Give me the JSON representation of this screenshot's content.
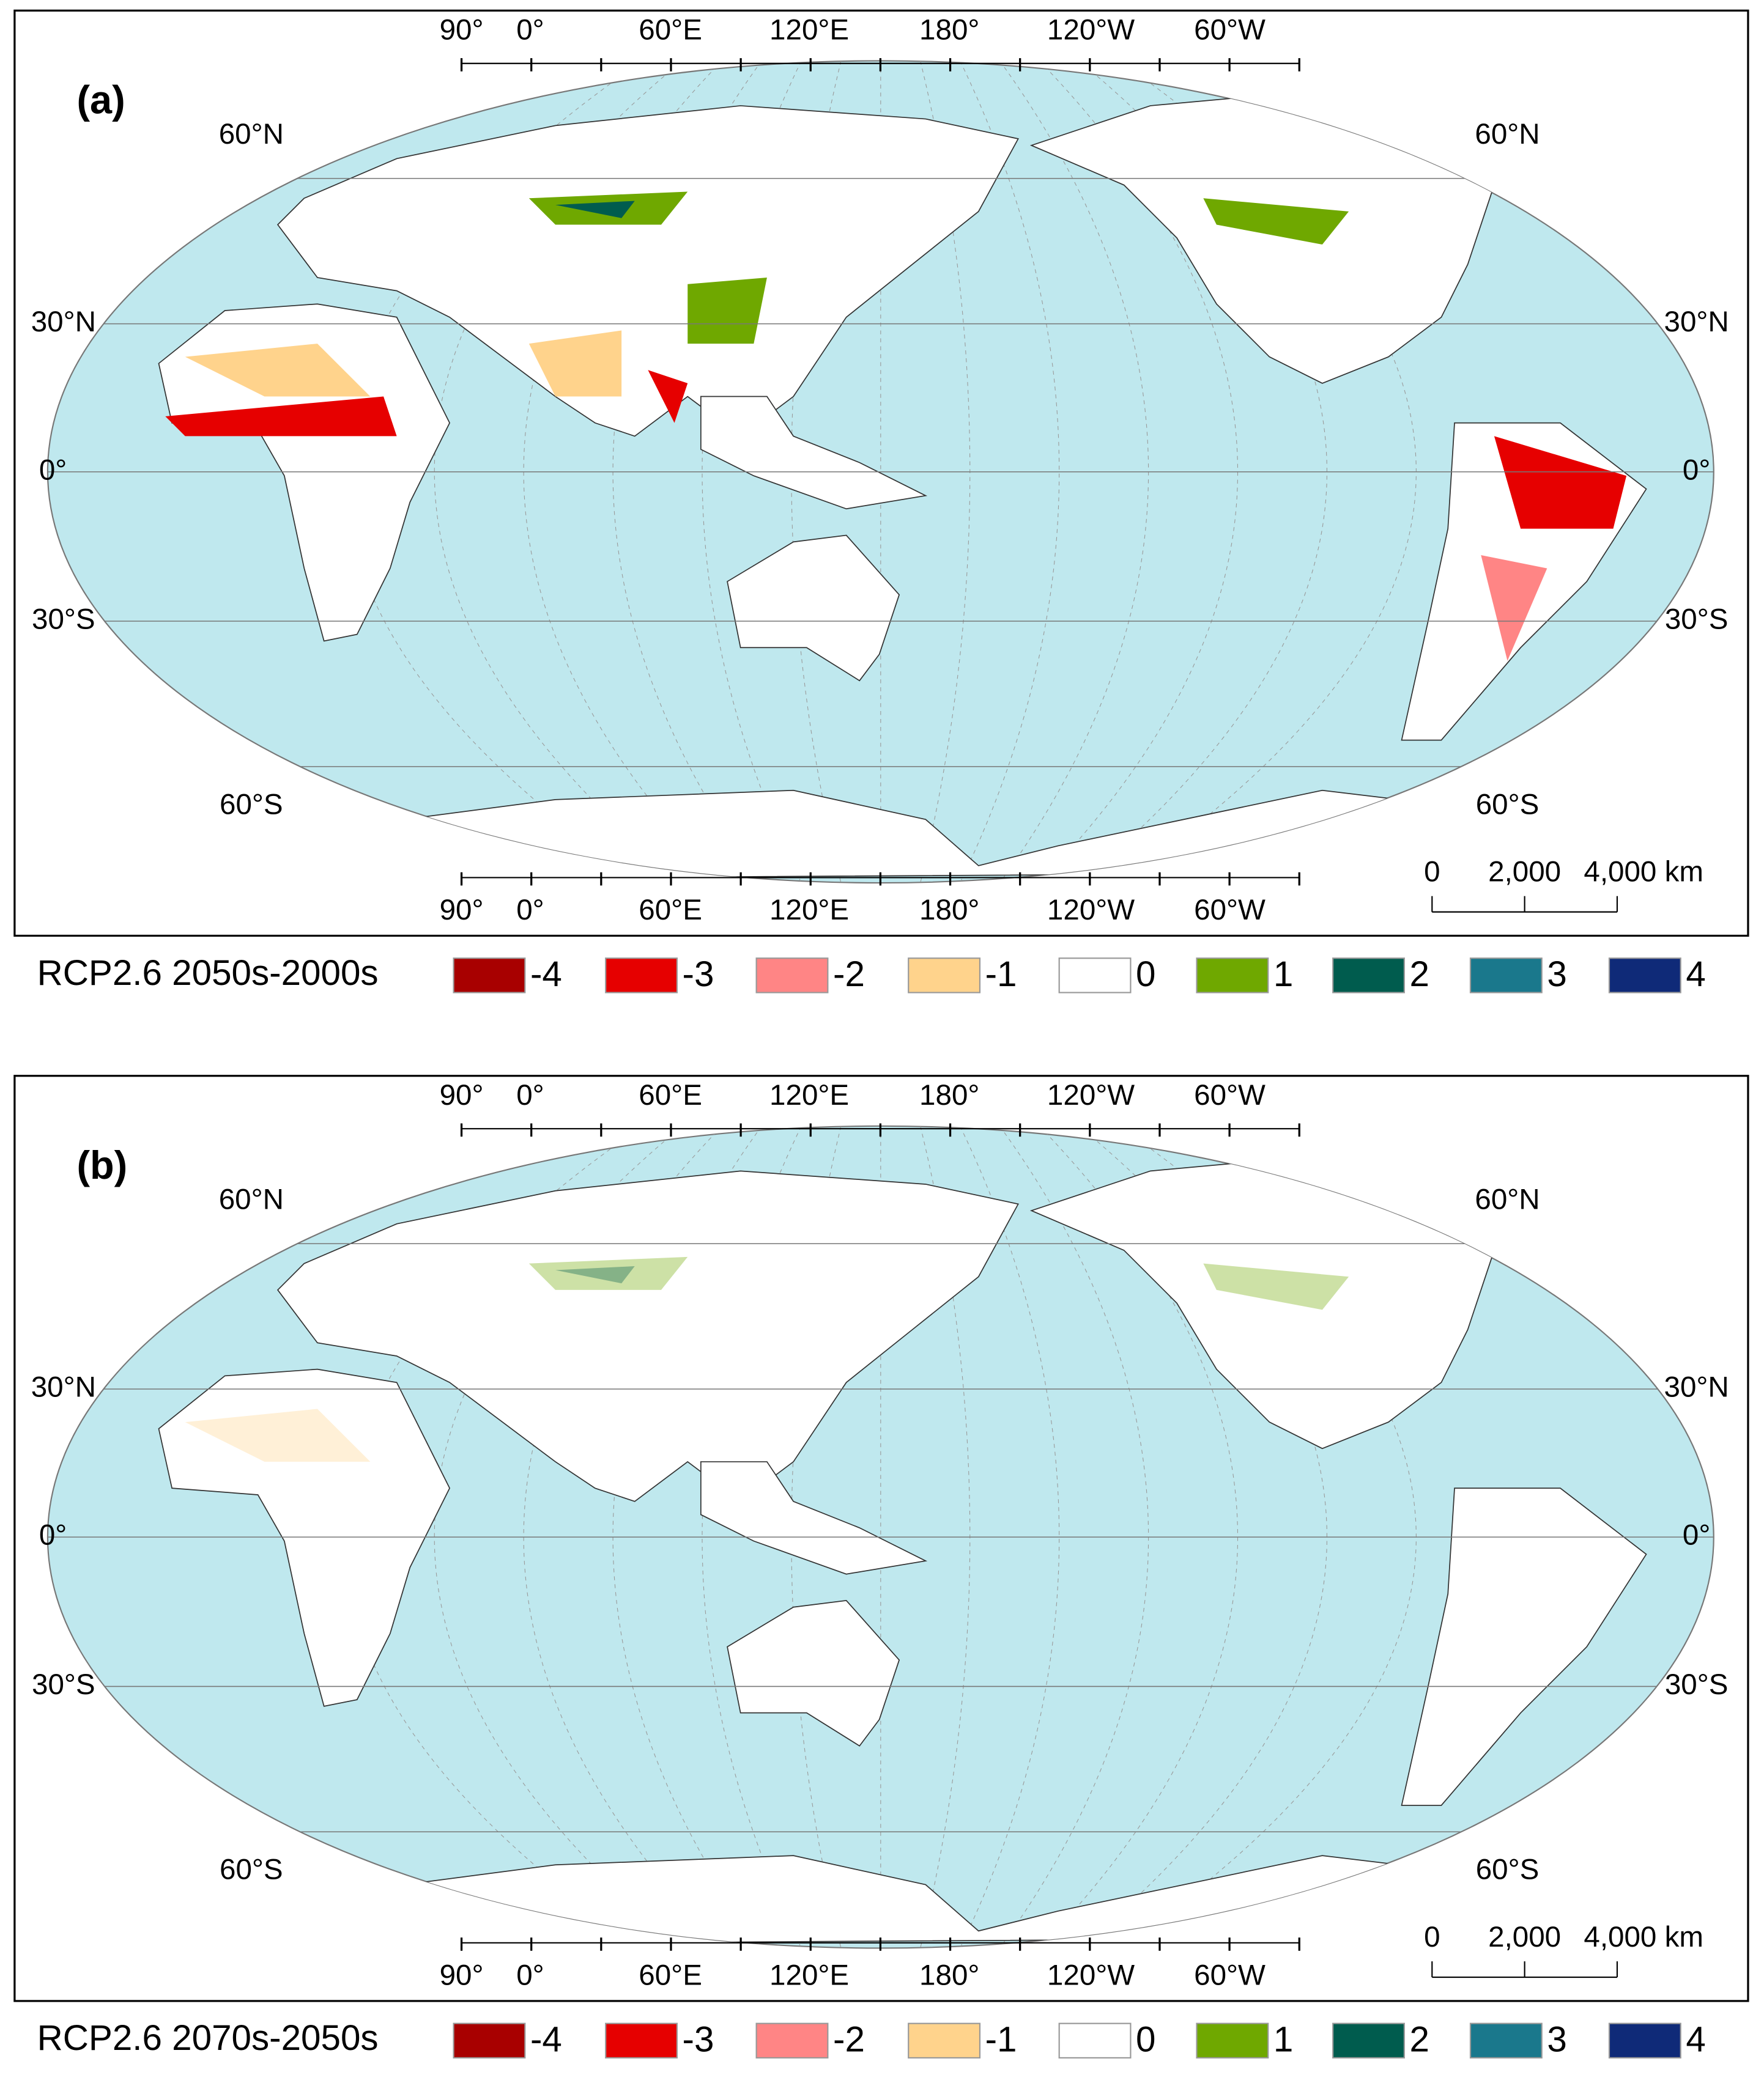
{
  "panels": [
    {
      "label": "(a)",
      "legend_title": "RCP2.6 2050s-2000s"
    },
    {
      "label": "(b)",
      "legend_title": "RCP2.6 2070s-2050s"
    }
  ],
  "legend": {
    "items": [
      {
        "label": "-4",
        "color": "#a80000"
      },
      {
        "label": "-3",
        "color": "#e60000"
      },
      {
        "label": "-2",
        "color": "#ff8585"
      },
      {
        "label": "-1",
        "color": "#ffd38c"
      },
      {
        "label": "0",
        "color": "#ffffff"
      },
      {
        "label": "1",
        "color": "#6fa800"
      },
      {
        "label": "2",
        "color": "#005c4e"
      },
      {
        "label": "3",
        "color": "#1a788c"
      },
      {
        "label": "4",
        "color": "#0f2a78"
      }
    ]
  },
  "lon_labels": [
    "90°",
    "0°",
    "60°E",
    "120°E",
    "180°",
    "120°W",
    "60°W"
  ],
  "lat_labels": [
    "60°N",
    "30°N",
    "0°",
    "30°S",
    "60°S"
  ],
  "scale_bar": {
    "labels": [
      "0",
      "2,000",
      "4,000 km"
    ]
  }
}
